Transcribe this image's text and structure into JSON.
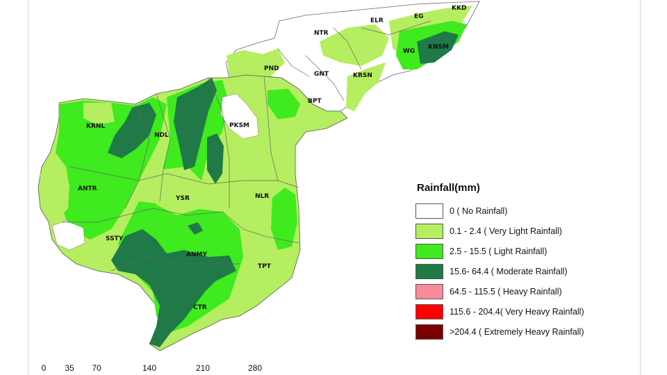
{
  "map": {
    "districts": [
      {
        "id": "kkd",
        "label": "KKD"
      },
      {
        "id": "eg",
        "label": "EG"
      },
      {
        "id": "elr",
        "label": "ELR"
      },
      {
        "id": "ntr",
        "label": "NTR"
      },
      {
        "id": "wg",
        "label": "WG"
      },
      {
        "id": "knsm",
        "label": "KNSM"
      },
      {
        "id": "pnd",
        "label": "PND"
      },
      {
        "id": "gnt",
        "label": "GNT"
      },
      {
        "id": "krsn",
        "label": "KRSN"
      },
      {
        "id": "bpt",
        "label": "BPT"
      },
      {
        "id": "krnl",
        "label": "KRNL"
      },
      {
        "id": "ndl",
        "label": "NDL"
      },
      {
        "id": "pksm",
        "label": "PKSM"
      },
      {
        "id": "antr",
        "label": "ANTR"
      },
      {
        "id": "ysr",
        "label": "YSR"
      },
      {
        "id": "nlr",
        "label": "NLR"
      },
      {
        "id": "ssty",
        "label": "SSTY"
      },
      {
        "id": "anmy",
        "label": "ANMY"
      },
      {
        "id": "tpt",
        "label": "TPT"
      },
      {
        "id": "ctr",
        "label": "CTR"
      }
    ]
  },
  "legend": {
    "title": "Rainfall(mm)",
    "items": [
      {
        "label": "0 ( No Rainfall)",
        "color": "#ffffff"
      },
      {
        "label": "0.1 - 2.4 ( Very Light Rainfall)",
        "color": "#b5ee60"
      },
      {
        "label": "2.5 - 15.5 ( Light Rainfall)",
        "color": "#3fea1e"
      },
      {
        "label": "15.6- 64.4 ( Moderate Rainfall)",
        "color": "#1f7a47"
      },
      {
        "label": "64.5 - 115.5 ( Heavy Rainfall)",
        "color": "#f88a9c"
      },
      {
        "label": "115.6 - 204.4( Very Heavy Rainfall)",
        "color": "#ff0000"
      },
      {
        "label": ">204.4 ( Extremely Heavy Rainfall)",
        "color": "#7a0000"
      }
    ]
  },
  "scale_bar": {
    "ticks": [
      "0",
      "35",
      "70",
      "140",
      "210",
      "280"
    ]
  }
}
